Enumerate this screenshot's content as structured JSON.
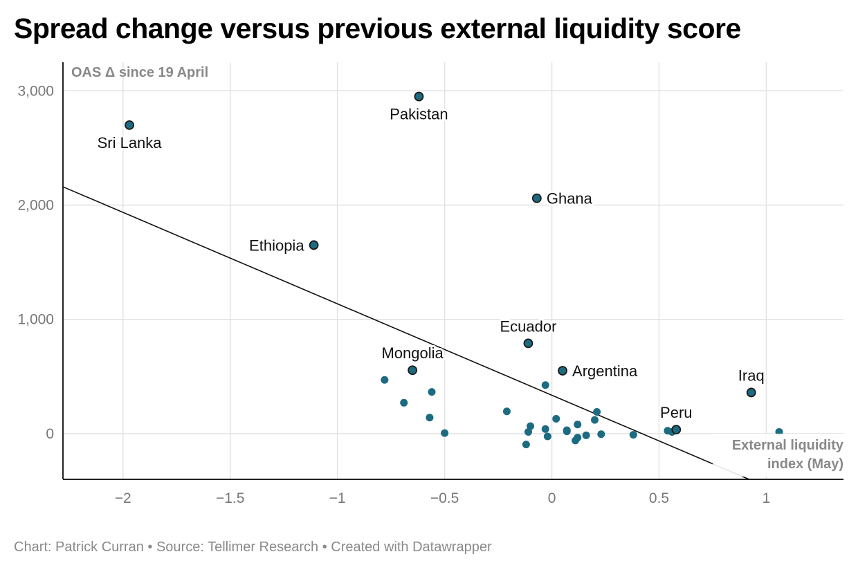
{
  "title": "Spread change versus previous external liquidity score",
  "footer": {
    "chart_credit": "Chart: Patrick Curran",
    "source": "Source: Tellimer Research",
    "created": "Created with Datawrapper",
    "separator": " • "
  },
  "colors": {
    "point": "#1c6b80",
    "point_outline": "#1a1a1a",
    "grid": "#e2e2e2",
    "axis": "#222222",
    "tick_label": "#777777",
    "axis_title": "#888888",
    "trend_line": "#111111"
  },
  "chart_data": {
    "type": "scatter",
    "title": "Spread change versus previous external liquidity score",
    "xlabel": "External liquidity index (May)",
    "ylabel": "OAS Δ since 19 April",
    "xlim": [
      -2.28,
      1.36
    ],
    "ylim": [
      -400,
      3250
    ],
    "x_ticks": [
      -2,
      -1.5,
      -1,
      -0.5,
      0,
      0.5,
      1
    ],
    "x_tick_labels": [
      "−2",
      "−1.5",
      "−1",
      "−0.5",
      "0",
      "0.5",
      "1"
    ],
    "y_ticks": [
      0,
      1000,
      2000,
      3000
    ],
    "y_tick_labels": [
      "0",
      "1,000",
      "2,000",
      "3,000"
    ],
    "grid": true,
    "labeled_points": [
      {
        "name": "Sri Lanka",
        "x": -1.97,
        "y": 2700,
        "label_pos": "below"
      },
      {
        "name": "Pakistan",
        "x": -0.62,
        "y": 2950,
        "label_pos": "below"
      },
      {
        "name": "Ghana",
        "x": -0.07,
        "y": 2060,
        "label_pos": "right"
      },
      {
        "name": "Ethiopia",
        "x": -1.11,
        "y": 1650,
        "label_pos": "left"
      },
      {
        "name": "Ecuador",
        "x": -0.11,
        "y": 790,
        "label_pos": "above"
      },
      {
        "name": "Mongolia",
        "x": -0.65,
        "y": 555,
        "label_pos": "above"
      },
      {
        "name": "Argentina",
        "x": 0.05,
        "y": 550,
        "label_pos": "right"
      },
      {
        "name": "Iraq",
        "x": 0.93,
        "y": 360,
        "label_pos": "above"
      },
      {
        "name": "Peru",
        "x": 0.58,
        "y": 35,
        "label_pos": "above"
      }
    ],
    "unlabeled_points": [
      {
        "x": -0.78,
        "y": 470
      },
      {
        "x": -0.69,
        "y": 270
      },
      {
        "x": -0.56,
        "y": 365
      },
      {
        "x": -0.57,
        "y": 140
      },
      {
        "x": -0.5,
        "y": 5
      },
      {
        "x": -0.21,
        "y": 195
      },
      {
        "x": -0.03,
        "y": 425
      },
      {
        "x": -0.1,
        "y": 65
      },
      {
        "x": -0.11,
        "y": 15
      },
      {
        "x": -0.12,
        "y": -95
      },
      {
        "x": -0.03,
        "y": 40
      },
      {
        "x": -0.02,
        "y": -25
      },
      {
        "x": 0.02,
        "y": 130
      },
      {
        "x": 0.07,
        "y": 20
      },
      {
        "x": 0.07,
        "y": 30
      },
      {
        "x": 0.12,
        "y": 80
      },
      {
        "x": 0.12,
        "y": -35
      },
      {
        "x": 0.11,
        "y": -60
      },
      {
        "x": 0.16,
        "y": -15
      },
      {
        "x": 0.2,
        "y": 120
      },
      {
        "x": 0.21,
        "y": 190
      },
      {
        "x": 0.23,
        "y": -5
      },
      {
        "x": 0.38,
        "y": -10
      },
      {
        "x": 0.54,
        "y": 25
      },
      {
        "x": 0.56,
        "y": 15
      },
      {
        "x": 1.06,
        "y": 15
      }
    ],
    "trend_line": {
      "x1": -2.28,
      "y1": 2160,
      "x2": 0.92,
      "y2": -400
    }
  }
}
